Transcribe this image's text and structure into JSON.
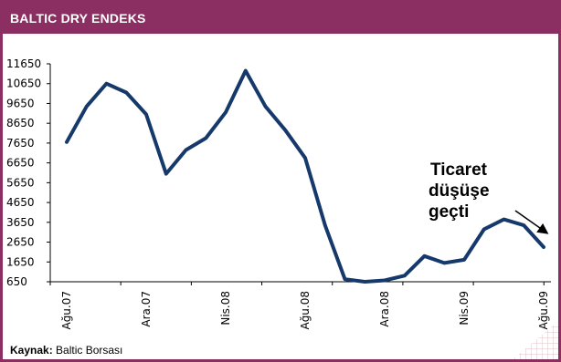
{
  "header": {
    "title": "BALTIC DRY ENDEKS"
  },
  "source": {
    "label": "Kaynak:",
    "text": "Baltic Borsası"
  },
  "annotation": {
    "lines": [
      "Ticaret",
      "düşüşe",
      "geçti"
    ]
  },
  "colors": {
    "accent": "#8b2f63",
    "line": "#16396b"
  },
  "chart_data": {
    "type": "line",
    "title": "BALTIC DRY ENDEKS",
    "xlabel": "",
    "ylabel": "",
    "ylim": [
      650,
      11650
    ],
    "y_ticks": [
      650,
      1650,
      2650,
      3650,
      4650,
      5650,
      6650,
      7650,
      8650,
      9650,
      10650,
      11650
    ],
    "x_tick_labels": [
      "Ağu.07",
      "Ara.07",
      "Nis.08",
      "Ağu.08",
      "Ara.08",
      "Nis.09",
      "Ağu.09"
    ],
    "grid": false,
    "series": [
      {
        "values": [
          7700,
          9500,
          10650,
          10200,
          9100,
          6100,
          7300,
          7900,
          9200,
          11300,
          9500,
          8300,
          6900,
          3500,
          780,
          650,
          720,
          960,
          1950,
          1600,
          1760,
          3300,
          3800,
          3500,
          2400
        ]
      }
    ]
  }
}
